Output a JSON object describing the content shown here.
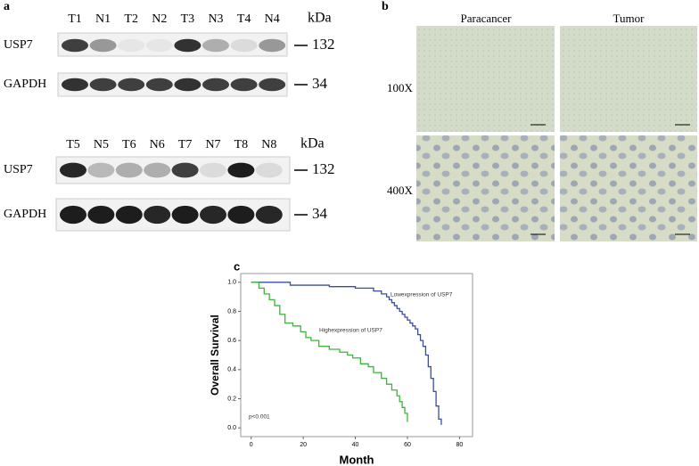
{
  "panel_a": {
    "label": "a",
    "blots": [
      {
        "lanes": [
          "T1",
          "N1",
          "T2",
          "N2",
          "T3",
          "N3",
          "T4",
          "N4"
        ],
        "unit": "kDa",
        "rows": [
          {
            "name": "USP7",
            "size": "132"
          },
          {
            "name": "GAPDH",
            "size": "34"
          }
        ]
      },
      {
        "lanes": [
          "T5",
          "N5",
          "T6",
          "N6",
          "T7",
          "N7",
          "T8",
          "N8"
        ],
        "unit": "kDa",
        "rows": [
          {
            "name": "USP7",
            "size": "132"
          },
          {
            "name": "GAPDH",
            "size": "34"
          }
        ]
      }
    ]
  },
  "panel_b": {
    "label": "b",
    "columns": [
      "Paracancer",
      "Tumor"
    ],
    "rows": [
      "100X",
      "400X"
    ]
  },
  "chart_data": {
    "type": "step",
    "label": "c",
    "xlabel": "Month",
    "ylabel": "Overall Survival",
    "xlim": [
      -4,
      85
    ],
    "xticks": [
      0,
      20,
      40,
      60,
      80
    ],
    "ylim": [
      -0.06,
      1.06
    ],
    "yticks": [
      {
        "value": 0,
        "label": "0.0"
      },
      0.2,
      0.4,
      0.6,
      0.8,
      {
        "value": 1,
        "label": "1.0"
      }
    ],
    "annotations": [
      "Lowexpression of USP7",
      "Highexpression of USP7",
      "p<0.001"
    ],
    "series": [
      {
        "color": "#3b4e9c",
        "x": [
          0,
          15,
          30,
          40,
          47,
          50,
          52,
          53,
          54,
          55,
          56,
          57,
          58,
          59,
          60,
          61,
          62,
          63,
          64,
          65,
          66,
          67,
          68,
          69,
          70,
          71,
          72,
          73
        ],
        "values": [
          1.0,
          0.98,
          0.97,
          0.96,
          0.94,
          0.92,
          0.9,
          0.88,
          0.86,
          0.84,
          0.82,
          0.8,
          0.78,
          0.76,
          0.74,
          0.72,
          0.7,
          0.68,
          0.64,
          0.6,
          0.56,
          0.5,
          0.42,
          0.34,
          0.25,
          0.15,
          0.06,
          0.02
        ]
      },
      {
        "color": "#3cb53c",
        "x": [
          0,
          3,
          5,
          7,
          9,
          11,
          13,
          16,
          19,
          21,
          23,
          26,
          30,
          34,
          37,
          39,
          42,
          45,
          47,
          50,
          52,
          54,
          56,
          57,
          58,
          59,
          60
        ],
        "values": [
          1.0,
          0.96,
          0.92,
          0.88,
          0.84,
          0.78,
          0.72,
          0.7,
          0.66,
          0.62,
          0.6,
          0.56,
          0.54,
          0.52,
          0.5,
          0.48,
          0.44,
          0.42,
          0.38,
          0.34,
          0.3,
          0.26,
          0.22,
          0.18,
          0.14,
          0.1,
          0.04
        ]
      }
    ]
  }
}
